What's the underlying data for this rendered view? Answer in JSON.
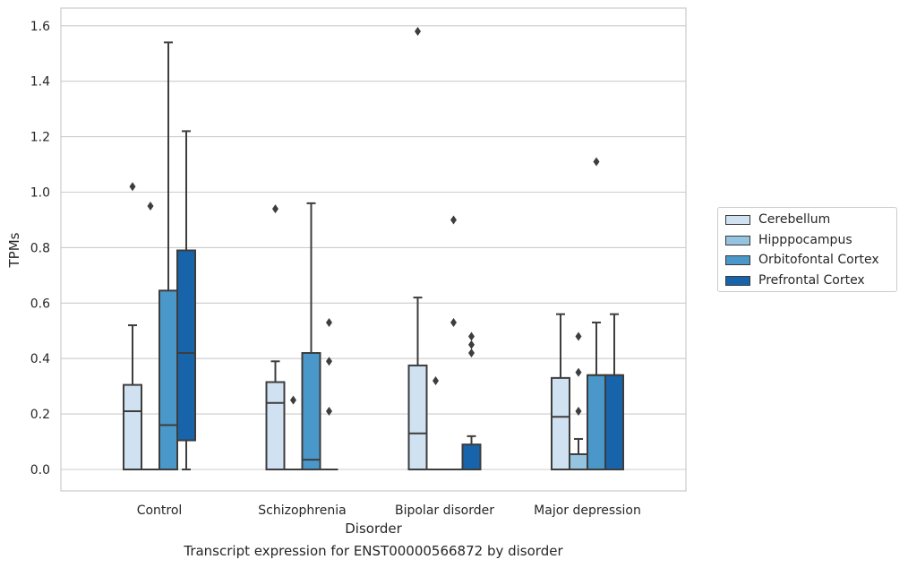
{
  "caption": "Transcript expression for ENST00000566872 by disorder",
  "legend": [
    {
      "label": "Cerebellum",
      "color": "#d0e1f2"
    },
    {
      "label": "Hipppocampus",
      "color": "#94c4df"
    },
    {
      "label": "Orbitofontal Cortex",
      "color": "#4a98c9"
    },
    {
      "label": "Prefrontal Cortex",
      "color": "#1764ab"
    }
  ],
  "chart_data": {
    "type": "boxplot",
    "title": "",
    "xlabel": "Disorder",
    "ylabel": "TPMs",
    "ylim": [
      -0.08,
      1.66
    ],
    "yticks": [
      "0.0",
      "0.2",
      "0.4",
      "0.6",
      "0.8",
      "1.0",
      "1.2",
      "1.4",
      "1.6"
    ],
    "grid": true,
    "legend_position": "right",
    "categories": [
      "Control",
      "Schizophrenia",
      "Bipolar disorder",
      "Major depression"
    ],
    "series": [
      {
        "name": "Cerebellum",
        "color": "#d0e1f2",
        "boxes": [
          {
            "whislo": 0.0,
            "q1": 0.0,
            "med": 0.21,
            "q3": 0.305,
            "whishi": 0.52,
            "fliers": [
              1.02
            ]
          },
          {
            "whislo": 0.0,
            "q1": 0.0,
            "med": 0.24,
            "q3": 0.315,
            "whishi": 0.39,
            "fliers": [
              0.94
            ]
          },
          {
            "whislo": 0.0,
            "q1": 0.0,
            "med": 0.13,
            "q3": 0.375,
            "whishi": 0.62,
            "fliers": [
              1.58
            ]
          },
          {
            "whislo": 0.0,
            "q1": 0.0,
            "med": 0.19,
            "q3": 0.33,
            "whishi": 0.56,
            "fliers": []
          }
        ]
      },
      {
        "name": "Hipppocampus",
        "color": "#94c4df",
        "boxes": [
          {
            "whislo": 0.0,
            "q1": 0.0,
            "med": 0.0,
            "q3": 0.0,
            "whishi": 0.0,
            "fliers": [
              0.95
            ]
          },
          {
            "whislo": 0.0,
            "q1": 0.0,
            "med": 0.0,
            "q3": 0.0,
            "whishi": 0.0,
            "fliers": [
              0.25
            ]
          },
          {
            "whislo": 0.0,
            "q1": 0.0,
            "med": 0.0,
            "q3": 0.0,
            "whishi": 0.0,
            "fliers": [
              0.32
            ]
          },
          {
            "whislo": 0.0,
            "q1": 0.0,
            "med": 0.0,
            "q3": 0.055,
            "whishi": 0.11,
            "fliers": [
              0.21,
              0.35,
              0.48
            ]
          }
        ]
      },
      {
        "name": "Orbitofontal Cortex",
        "color": "#4a98c9",
        "boxes": [
          {
            "whislo": 0.0,
            "q1": 0.0,
            "med": 0.16,
            "q3": 0.645,
            "whishi": 1.54,
            "fliers": []
          },
          {
            "whislo": 0.0,
            "q1": 0.0,
            "med": 0.035,
            "q3": 0.42,
            "whishi": 0.96,
            "fliers": []
          },
          {
            "whislo": 0.0,
            "q1": 0.0,
            "med": 0.0,
            "q3": 0.0,
            "whishi": 0.0,
            "fliers": [
              0.53,
              0.9
            ]
          },
          {
            "whislo": 0.0,
            "q1": 0.0,
            "med": 0.34,
            "q3": 0.34,
            "whishi": 0.53,
            "fliers": [
              1.11
            ]
          }
        ]
      },
      {
        "name": "Prefrontal Cortex",
        "color": "#1764ab",
        "boxes": [
          {
            "whislo": 0.0,
            "q1": 0.105,
            "med": 0.42,
            "q3": 0.79,
            "whishi": 1.22,
            "fliers": []
          },
          {
            "whislo": 0.0,
            "q1": 0.0,
            "med": 0.0,
            "q3": 0.0,
            "whishi": 0.0,
            "fliers": [
              0.21,
              0.39,
              0.53
            ]
          },
          {
            "whislo": 0.0,
            "q1": 0.0,
            "med": 0.0,
            "q3": 0.09,
            "whishi": 0.12,
            "fliers": [
              0.42,
              0.45,
              0.48
            ]
          },
          {
            "whislo": 0.0,
            "q1": 0.0,
            "med": 0.34,
            "q3": 0.34,
            "whishi": 0.56,
            "fliers": []
          }
        ]
      }
    ]
  }
}
